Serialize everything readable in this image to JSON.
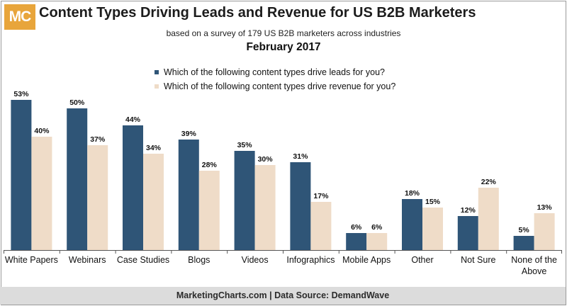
{
  "header": {
    "logo": "MC",
    "title": "Content Types Driving Leads and Revenue for US B2B Marketers",
    "subtitle": "based on a survey of 179 US B2B marketers across industries",
    "date": "February 2017"
  },
  "colors": {
    "leads": "#2f5577",
    "revenue": "#efdcc8",
    "logo_bg": "#e8a53b",
    "footer_bg": "#dcdcdc"
  },
  "chart_data": {
    "type": "bar",
    "categories": [
      "White Papers",
      "Webinars",
      "Case Studies",
      "Blogs",
      "Videos",
      "Infographics",
      "Mobile Apps",
      "Other",
      "Not Sure",
      "None of the Above"
    ],
    "series": [
      {
        "name": "Which of the following content types drive leads for you?",
        "values": [
          53,
          50,
          44,
          39,
          35,
          31,
          6,
          18,
          12,
          5
        ]
      },
      {
        "name": "Which of the following content types drive revenue for you?",
        "values": [
          40,
          37,
          34,
          28,
          30,
          17,
          6,
          15,
          22,
          13
        ]
      }
    ],
    "value_suffix": "%",
    "ylim": [
      0,
      55
    ],
    "legend_position": "top-center",
    "grid": false
  },
  "footer": "MarketingCharts.com | Data Source: DemandWave"
}
